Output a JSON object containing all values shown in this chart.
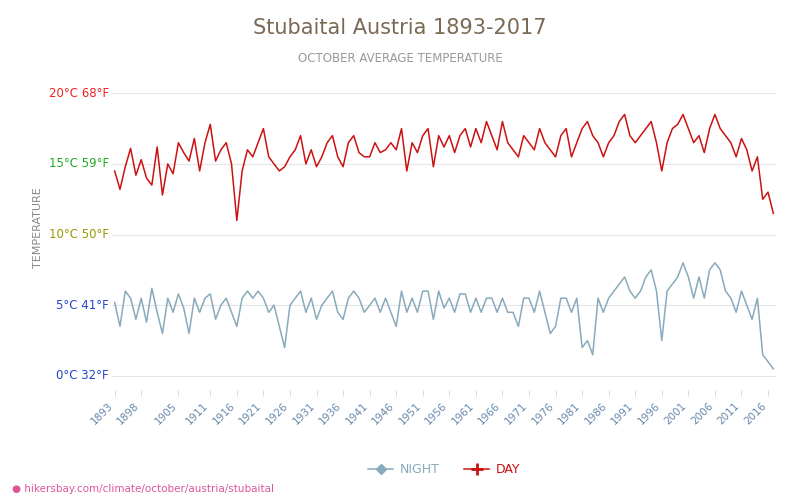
{
  "title": "Stubaital Austria 1893-2017",
  "subtitle": "OCTOBER AVERAGE TEMPERATURE",
  "ylabel": "TEMPERATURE",
  "xlabel_url": "hikersbay.com/climate/october/austria/stubaital",
  "years": [
    1893,
    1894,
    1895,
    1896,
    1897,
    1898,
    1899,
    1900,
    1901,
    1902,
    1903,
    1904,
    1905,
    1906,
    1907,
    1908,
    1909,
    1910,
    1911,
    1912,
    1913,
    1914,
    1915,
    1916,
    1917,
    1918,
    1919,
    1920,
    1921,
    1922,
    1923,
    1924,
    1925,
    1926,
    1927,
    1928,
    1929,
    1930,
    1931,
    1932,
    1933,
    1934,
    1935,
    1936,
    1937,
    1938,
    1939,
    1940,
    1941,
    1942,
    1943,
    1944,
    1945,
    1946,
    1947,
    1948,
    1949,
    1950,
    1951,
    1952,
    1953,
    1954,
    1955,
    1956,
    1957,
    1958,
    1959,
    1960,
    1961,
    1962,
    1963,
    1964,
    1965,
    1966,
    1967,
    1968,
    1969,
    1970,
    1971,
    1972,
    1973,
    1974,
    1975,
    1976,
    1977,
    1978,
    1979,
    1980,
    1981,
    1982,
    1983,
    1984,
    1985,
    1986,
    1987,
    1988,
    1989,
    1990,
    1991,
    1992,
    1993,
    1994,
    1995,
    1996,
    1997,
    1998,
    1999,
    2000,
    2001,
    2002,
    2003,
    2004,
    2005,
    2006,
    2007,
    2008,
    2009,
    2010,
    2011,
    2012,
    2013,
    2014,
    2015,
    2016,
    2017
  ],
  "day_temps": [
    14.5,
    13.2,
    14.8,
    16.1,
    14.2,
    15.3,
    14.0,
    13.5,
    16.2,
    12.8,
    15.0,
    14.3,
    16.5,
    15.8,
    15.2,
    16.8,
    14.5,
    16.5,
    17.8,
    15.2,
    16.0,
    16.5,
    15.0,
    11.0,
    14.5,
    16.0,
    15.5,
    16.5,
    17.5,
    15.5,
    15.0,
    14.5,
    14.8,
    15.5,
    16.0,
    17.0,
    15.0,
    16.0,
    14.8,
    15.5,
    16.5,
    17.0,
    15.5,
    14.8,
    16.5,
    17.0,
    15.8,
    15.5,
    15.5,
    16.5,
    15.8,
    16.0,
    16.5,
    16.0,
    17.5,
    14.5,
    16.5,
    15.8,
    17.0,
    17.5,
    14.8,
    17.0,
    16.2,
    17.0,
    15.8,
    17.0,
    17.5,
    16.2,
    17.5,
    16.5,
    18.0,
    17.0,
    16.0,
    18.0,
    16.5,
    16.0,
    15.5,
    17.0,
    16.5,
    16.0,
    17.5,
    16.5,
    16.0,
    15.5,
    17.0,
    17.5,
    15.5,
    16.5,
    17.5,
    18.0,
    17.0,
    16.5,
    15.5,
    16.5,
    17.0,
    18.0,
    18.5,
    17.0,
    16.5,
    17.0,
    17.5,
    18.0,
    16.5,
    14.5,
    16.5,
    17.5,
    17.8,
    18.5,
    17.5,
    16.5,
    17.0,
    15.8,
    17.5,
    18.5,
    17.5,
    17.0,
    16.5,
    15.5,
    16.8,
    16.0,
    14.5,
    15.5,
    12.5,
    13.0,
    11.5
  ],
  "night_temps": [
    5.2,
    3.5,
    6.0,
    5.5,
    4.0,
    5.5,
    3.8,
    6.2,
    4.5,
    3.0,
    5.5,
    4.5,
    5.8,
    4.8,
    3.0,
    5.5,
    4.5,
    5.5,
    5.8,
    4.0,
    5.0,
    5.5,
    4.5,
    3.5,
    5.5,
    6.0,
    5.5,
    6.0,
    5.5,
    4.5,
    5.0,
    3.5,
    2.0,
    5.0,
    5.5,
    6.0,
    4.5,
    5.5,
    4.0,
    5.0,
    5.5,
    6.0,
    4.5,
    4.0,
    5.5,
    6.0,
    5.5,
    4.5,
    5.0,
    5.5,
    4.5,
    5.5,
    4.5,
    3.5,
    6.0,
    4.5,
    5.5,
    4.5,
    6.0,
    6.0,
    4.0,
    6.0,
    4.8,
    5.5,
    4.5,
    5.8,
    5.8,
    4.5,
    5.5,
    4.5,
    5.5,
    5.5,
    4.5,
    5.5,
    4.5,
    4.5,
    3.5,
    5.5,
    5.5,
    4.5,
    6.0,
    4.5,
    3.0,
    3.5,
    5.5,
    5.5,
    4.5,
    5.5,
    2.0,
    2.5,
    1.5,
    5.5,
    4.5,
    5.5,
    6.0,
    6.5,
    7.0,
    6.0,
    5.5,
    6.0,
    7.0,
    7.5,
    6.0,
    2.5,
    6.0,
    6.5,
    7.0,
    8.0,
    7.0,
    5.5,
    7.0,
    5.5,
    7.5,
    8.0,
    7.5,
    6.0,
    5.5,
    4.5,
    6.0,
    5.0,
    4.0,
    5.5,
    1.5,
    1.0,
    0.5
  ],
  "yticks_c": [
    0,
    5,
    10,
    15,
    20
  ],
  "yticks_f": [
    32,
    41,
    50,
    59,
    68
  ],
  "ytick_colors": [
    "#2244cc",
    "#2244cc",
    "#999900",
    "#22aa22",
    "#ee2222"
  ],
  "xtick_years": [
    1893,
    1898,
    1905,
    1911,
    1916,
    1921,
    1926,
    1931,
    1936,
    1941,
    1946,
    1951,
    1956,
    1961,
    1966,
    1971,
    1976,
    1981,
    1986,
    1991,
    1996,
    2001,
    2006,
    2011,
    2016
  ],
  "day_color": "#cc1111",
  "night_color": "#88aabc",
  "title_color": "#7a6a55",
  "subtitle_color": "#999999",
  "ylabel_color": "#888888",
  "background_color": "#ffffff",
  "grid_color": "#e5e5e5",
  "url_color": "#dd5599",
  "ymin": -1,
  "ymax": 22
}
